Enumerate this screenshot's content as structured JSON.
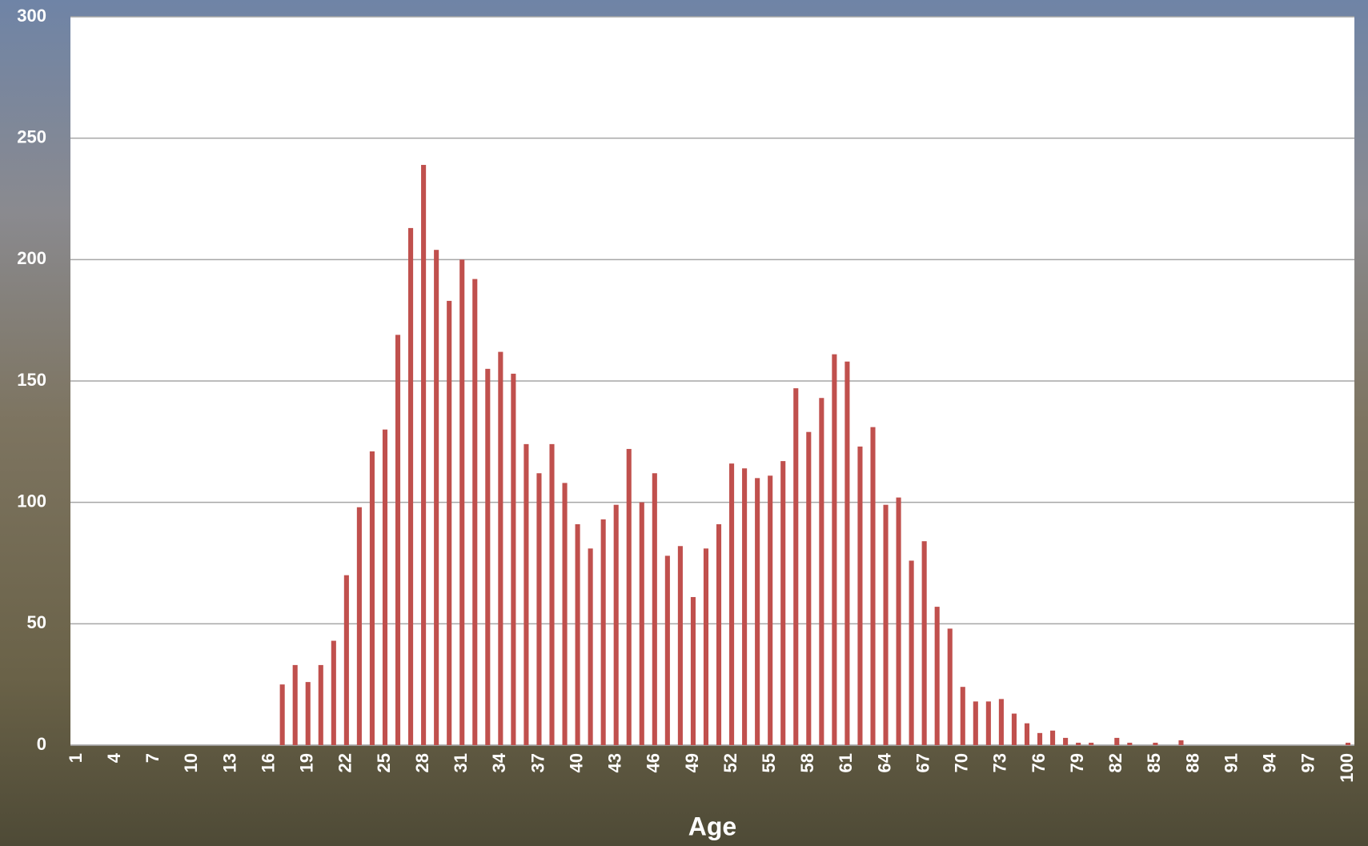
{
  "chart_data": {
    "type": "bar",
    "x_label": "Age",
    "categories": [
      "1",
      null,
      null,
      "4",
      null,
      null,
      "7",
      null,
      null,
      "10",
      null,
      null,
      "13",
      null,
      null,
      "16",
      null,
      null,
      "19",
      null,
      null,
      "22",
      null,
      null,
      "25",
      null,
      null,
      "28",
      null,
      null,
      "31",
      null,
      null,
      "34",
      null,
      null,
      "37",
      null,
      null,
      "40",
      null,
      null,
      "43",
      null,
      null,
      "46",
      null,
      null,
      "49",
      null,
      null,
      "52",
      null,
      null,
      "55",
      null,
      null,
      "58",
      null,
      null,
      "61",
      null,
      null,
      "64",
      null,
      null,
      "67",
      null,
      null,
      "70",
      null,
      null,
      "73",
      null,
      null,
      "76",
      null,
      null,
      "79",
      null,
      null,
      "82",
      null,
      null,
      "85",
      null,
      null,
      "88",
      null,
      null,
      "91",
      null,
      null,
      "94",
      null,
      null,
      "97",
      null,
      null,
      "100"
    ],
    "values": [
      0,
      0,
      0,
      0,
      0,
      0,
      0,
      0,
      0,
      0,
      0,
      0,
      0,
      0,
      0,
      0,
      25,
      33,
      26,
      33,
      43,
      70,
      98,
      121,
      130,
      169,
      213,
      239,
      204,
      183,
      200,
      192,
      155,
      162,
      153,
      124,
      112,
      124,
      108,
      91,
      81,
      93,
      99,
      122,
      100,
      112,
      78,
      82,
      61,
      81,
      91,
      116,
      114,
      110,
      111,
      117,
      147,
      129,
      143,
      161,
      158,
      123,
      131,
      99,
      102,
      76,
      84,
      57,
      48,
      24,
      18,
      18,
      19,
      13,
      9,
      5,
      6,
      3,
      1,
      1,
      0,
      3,
      1,
      0,
      1,
      0,
      2,
      0,
      0,
      0,
      0,
      0,
      0,
      0,
      0,
      0,
      0,
      0,
      0,
      1
    ],
    "color": "#c0504d",
    "ylim": [
      0,
      300
    ],
    "yticks": [
      0,
      50,
      100,
      150,
      200,
      250,
      300
    ],
    "grid": true
  }
}
